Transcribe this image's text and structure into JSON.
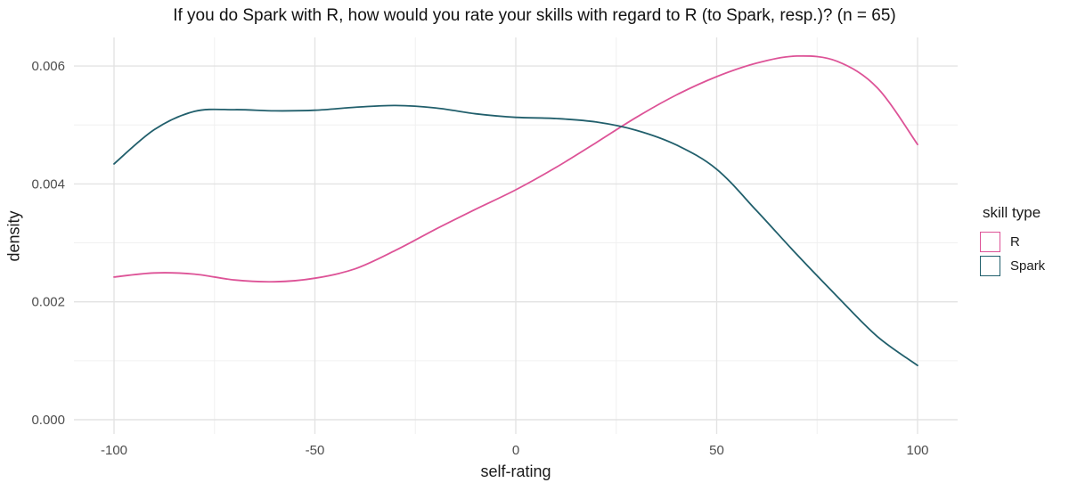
{
  "chart_data": {
    "type": "line",
    "title": "If you do Spark with R, how would you rate your skills with regard to R (to Spark, resp.)? (n = 65)",
    "xlabel": "self-rating",
    "ylabel": "density",
    "xlim": [
      -110,
      110
    ],
    "ylim": [
      0,
      0.0065
    ],
    "x_ticks": [
      -100,
      -50,
      0,
      50,
      100
    ],
    "x_tick_labels": [
      "-100",
      "-50",
      "0",
      "50",
      "100"
    ],
    "x_minor_ticks": [
      -75,
      -25,
      25,
      75
    ],
    "y_ticks": [
      0,
      0.002,
      0.004,
      0.006
    ],
    "y_tick_labels": [
      "0.000",
      "0.002",
      "0.004",
      "0.006"
    ],
    "y_minor_ticks": [
      0.001,
      0.003,
      0.005
    ],
    "grid": "major-and-minor",
    "legend": {
      "title": "skill type",
      "position": "right",
      "entries": [
        {
          "label": "R",
          "color": "#DD5397"
        },
        {
          "label": "Spark",
          "color": "#215F6C"
        }
      ]
    },
    "x": [
      -100,
      -90,
      -80,
      -70,
      -60,
      -50,
      -40,
      -30,
      -20,
      -10,
      0,
      10,
      20,
      30,
      40,
      50,
      60,
      70,
      80,
      90,
      100
    ],
    "series": [
      {
        "name": "R",
        "color": "#DD5397",
        "values": [
          0.00242,
          0.00249,
          0.00247,
          0.00237,
          0.00234,
          0.0024,
          0.00256,
          0.00287,
          0.00323,
          0.00357,
          0.0039,
          0.00428,
          0.0047,
          0.00513,
          0.00551,
          0.00582,
          0.00605,
          0.00617,
          0.00608,
          0.00563,
          0.00467
        ]
      },
      {
        "name": "Spark",
        "color": "#215F6C",
        "values": [
          0.00434,
          0.00492,
          0.00523,
          0.00526,
          0.00524,
          0.00525,
          0.0053,
          0.00533,
          0.00529,
          0.00519,
          0.00513,
          0.00511,
          0.00505,
          0.00491,
          0.00466,
          0.00425,
          0.00354,
          0.0028,
          0.00209,
          0.00141,
          0.00092
        ]
      }
    ]
  },
  "colors": {
    "background": "#FFFFFF",
    "grid_major": "#E3E3E3",
    "grid_minor": "#F0F0F0",
    "tick_label": "#4D4D4D",
    "text": "#1A1A1A"
  }
}
